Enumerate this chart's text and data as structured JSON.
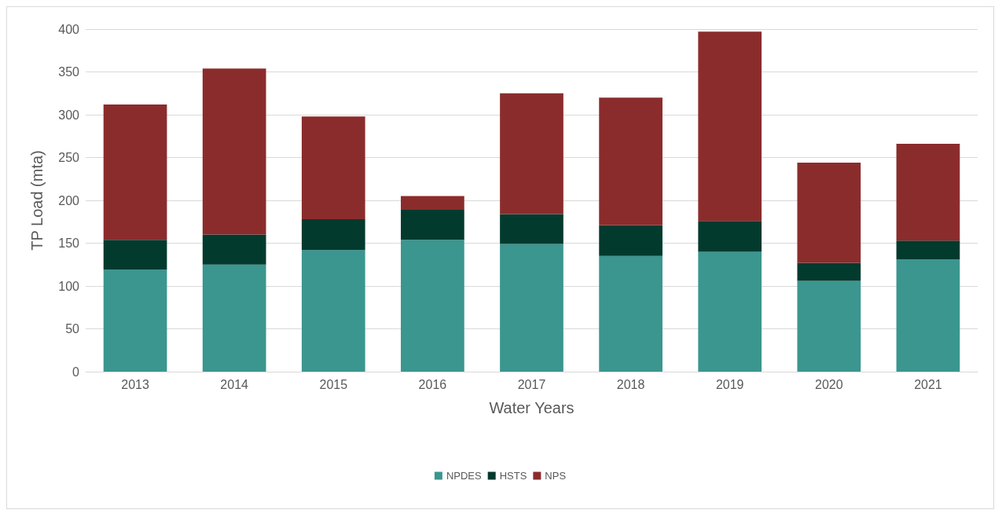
{
  "chart_data": {
    "type": "bar",
    "stacked": true,
    "xlabel": "Water Years",
    "ylabel": "TP Load (mta)",
    "categories": [
      "2013",
      "2014",
      "2015",
      "2016",
      "2017",
      "2018",
      "2019",
      "2020",
      "2021"
    ],
    "series": [
      {
        "name": "NPDES",
        "color": "#3a968f",
        "values": [
          119,
          125,
          142,
          154,
          149,
          135,
          140,
          106,
          131
        ]
      },
      {
        "name": "HSTS",
        "color": "#033a2e",
        "values": [
          35,
          35,
          36,
          35,
          35,
          36,
          36,
          21,
          22
        ]
      },
      {
        "name": "NPS",
        "color": "#8b2c2c",
        "values": [
          158,
          194,
          120,
          16,
          141,
          149,
          221,
          117,
          113
        ]
      }
    ],
    "ylim": [
      0,
      400
    ],
    "yticks": [
      0,
      50,
      100,
      150,
      200,
      250,
      300,
      350,
      400
    ],
    "grid": "y",
    "legend": "bottom"
  }
}
